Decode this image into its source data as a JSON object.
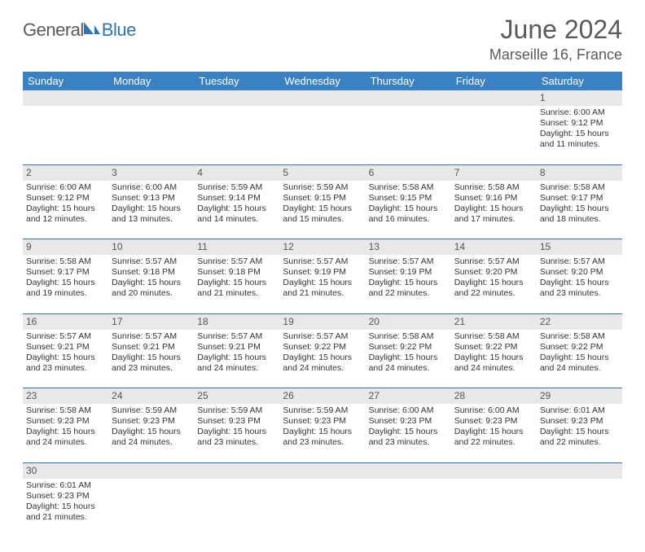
{
  "logo": {
    "text_general": "Genera",
    "text_l": "l",
    "text_blue": "Blue"
  },
  "title": "June 2024",
  "location": "Marseille 16, France",
  "header_row": [
    "Sunday",
    "Monday",
    "Tuesday",
    "Wednesday",
    "Thursday",
    "Friday",
    "Saturday"
  ],
  "colors": {
    "header_bg": "#3a81c4",
    "header_text": "#ffffff",
    "daynum_bg": "#e8e8e8",
    "cell_border": "#2f74b5",
    "title_color": "#5a5a5a",
    "logo_gray": "#5a5a5a",
    "logo_blue": "#2f74b5"
  },
  "weeks": [
    {
      "nums": [
        "",
        "",
        "",
        "",
        "",
        "",
        "1"
      ],
      "cells": [
        null,
        null,
        null,
        null,
        null,
        null,
        {
          "sunrise": "Sunrise: 6:00 AM",
          "sunset": "Sunset: 9:12 PM",
          "d1": "Daylight: 15 hours",
          "d2": "and 11 minutes."
        }
      ]
    },
    {
      "nums": [
        "2",
        "3",
        "4",
        "5",
        "6",
        "7",
        "8"
      ],
      "cells": [
        {
          "sunrise": "Sunrise: 6:00 AM",
          "sunset": "Sunset: 9:12 PM",
          "d1": "Daylight: 15 hours",
          "d2": "and 12 minutes."
        },
        {
          "sunrise": "Sunrise: 6:00 AM",
          "sunset": "Sunset: 9:13 PM",
          "d1": "Daylight: 15 hours",
          "d2": "and 13 minutes."
        },
        {
          "sunrise": "Sunrise: 5:59 AM",
          "sunset": "Sunset: 9:14 PM",
          "d1": "Daylight: 15 hours",
          "d2": "and 14 minutes."
        },
        {
          "sunrise": "Sunrise: 5:59 AM",
          "sunset": "Sunset: 9:15 PM",
          "d1": "Daylight: 15 hours",
          "d2": "and 15 minutes."
        },
        {
          "sunrise": "Sunrise: 5:58 AM",
          "sunset": "Sunset: 9:15 PM",
          "d1": "Daylight: 15 hours",
          "d2": "and 16 minutes."
        },
        {
          "sunrise": "Sunrise: 5:58 AM",
          "sunset": "Sunset: 9:16 PM",
          "d1": "Daylight: 15 hours",
          "d2": "and 17 minutes."
        },
        {
          "sunrise": "Sunrise: 5:58 AM",
          "sunset": "Sunset: 9:17 PM",
          "d1": "Daylight: 15 hours",
          "d2": "and 18 minutes."
        }
      ]
    },
    {
      "nums": [
        "9",
        "10",
        "11",
        "12",
        "13",
        "14",
        "15"
      ],
      "cells": [
        {
          "sunrise": "Sunrise: 5:58 AM",
          "sunset": "Sunset: 9:17 PM",
          "d1": "Daylight: 15 hours",
          "d2": "and 19 minutes."
        },
        {
          "sunrise": "Sunrise: 5:57 AM",
          "sunset": "Sunset: 9:18 PM",
          "d1": "Daylight: 15 hours",
          "d2": "and 20 minutes."
        },
        {
          "sunrise": "Sunrise: 5:57 AM",
          "sunset": "Sunset: 9:18 PM",
          "d1": "Daylight: 15 hours",
          "d2": "and 21 minutes."
        },
        {
          "sunrise": "Sunrise: 5:57 AM",
          "sunset": "Sunset: 9:19 PM",
          "d1": "Daylight: 15 hours",
          "d2": "and 21 minutes."
        },
        {
          "sunrise": "Sunrise: 5:57 AM",
          "sunset": "Sunset: 9:19 PM",
          "d1": "Daylight: 15 hours",
          "d2": "and 22 minutes."
        },
        {
          "sunrise": "Sunrise: 5:57 AM",
          "sunset": "Sunset: 9:20 PM",
          "d1": "Daylight: 15 hours",
          "d2": "and 22 minutes."
        },
        {
          "sunrise": "Sunrise: 5:57 AM",
          "sunset": "Sunset: 9:20 PM",
          "d1": "Daylight: 15 hours",
          "d2": "and 23 minutes."
        }
      ]
    },
    {
      "nums": [
        "16",
        "17",
        "18",
        "19",
        "20",
        "21",
        "22"
      ],
      "cells": [
        {
          "sunrise": "Sunrise: 5:57 AM",
          "sunset": "Sunset: 9:21 PM",
          "d1": "Daylight: 15 hours",
          "d2": "and 23 minutes."
        },
        {
          "sunrise": "Sunrise: 5:57 AM",
          "sunset": "Sunset: 9:21 PM",
          "d1": "Daylight: 15 hours",
          "d2": "and 23 minutes."
        },
        {
          "sunrise": "Sunrise: 5:57 AM",
          "sunset": "Sunset: 9:21 PM",
          "d1": "Daylight: 15 hours",
          "d2": "and 24 minutes."
        },
        {
          "sunrise": "Sunrise: 5:57 AM",
          "sunset": "Sunset: 9:22 PM",
          "d1": "Daylight: 15 hours",
          "d2": "and 24 minutes."
        },
        {
          "sunrise": "Sunrise: 5:58 AM",
          "sunset": "Sunset: 9:22 PM",
          "d1": "Daylight: 15 hours",
          "d2": "and 24 minutes."
        },
        {
          "sunrise": "Sunrise: 5:58 AM",
          "sunset": "Sunset: 9:22 PM",
          "d1": "Daylight: 15 hours",
          "d2": "and 24 minutes."
        },
        {
          "sunrise": "Sunrise: 5:58 AM",
          "sunset": "Sunset: 9:22 PM",
          "d1": "Daylight: 15 hours",
          "d2": "and 24 minutes."
        }
      ]
    },
    {
      "nums": [
        "23",
        "24",
        "25",
        "26",
        "27",
        "28",
        "29"
      ],
      "cells": [
        {
          "sunrise": "Sunrise: 5:58 AM",
          "sunset": "Sunset: 9:23 PM",
          "d1": "Daylight: 15 hours",
          "d2": "and 24 minutes."
        },
        {
          "sunrise": "Sunrise: 5:59 AM",
          "sunset": "Sunset: 9:23 PM",
          "d1": "Daylight: 15 hours",
          "d2": "and 24 minutes."
        },
        {
          "sunrise": "Sunrise: 5:59 AM",
          "sunset": "Sunset: 9:23 PM",
          "d1": "Daylight: 15 hours",
          "d2": "and 23 minutes."
        },
        {
          "sunrise": "Sunrise: 5:59 AM",
          "sunset": "Sunset: 9:23 PM",
          "d1": "Daylight: 15 hours",
          "d2": "and 23 minutes."
        },
        {
          "sunrise": "Sunrise: 6:00 AM",
          "sunset": "Sunset: 9:23 PM",
          "d1": "Daylight: 15 hours",
          "d2": "and 23 minutes."
        },
        {
          "sunrise": "Sunrise: 6:00 AM",
          "sunset": "Sunset: 9:23 PM",
          "d1": "Daylight: 15 hours",
          "d2": "and 22 minutes."
        },
        {
          "sunrise": "Sunrise: 6:01 AM",
          "sunset": "Sunset: 9:23 PM",
          "d1": "Daylight: 15 hours",
          "d2": "and 22 minutes."
        }
      ]
    },
    {
      "nums": [
        "30",
        "",
        "",
        "",
        "",
        "",
        ""
      ],
      "cells": [
        {
          "sunrise": "Sunrise: 6:01 AM",
          "sunset": "Sunset: 9:23 PM",
          "d1": "Daylight: 15 hours",
          "d2": "and 21 minutes."
        },
        null,
        null,
        null,
        null,
        null,
        null
      ]
    }
  ]
}
